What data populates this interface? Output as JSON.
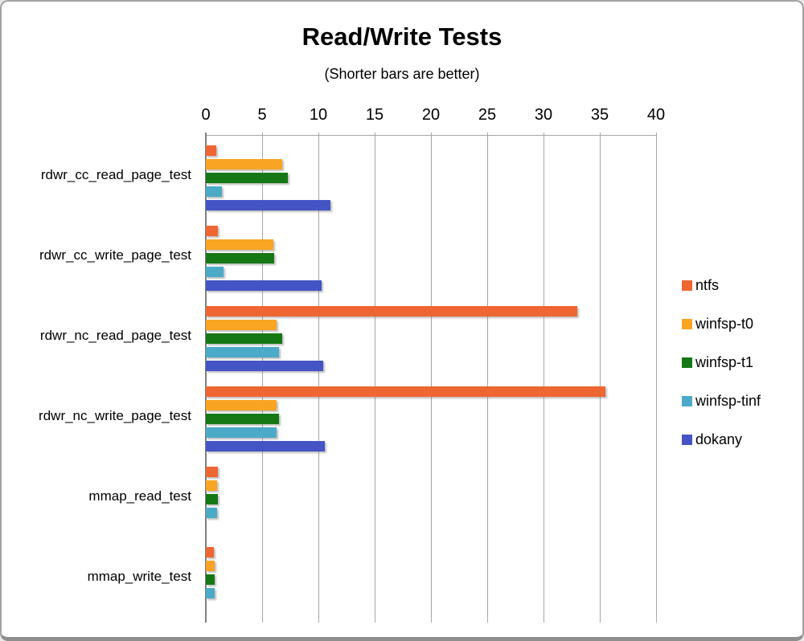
{
  "window": {
    "title": "Read/Write Tests",
    "subtitle": "(Shorter bars are better)"
  },
  "chart_data": {
    "type": "bar",
    "orientation": "horizontal",
    "title": "Read/Write Tests",
    "subtitle": "(Shorter bars are better)",
    "categories": [
      "rdwr_cc_read_page_test",
      "rdwr_cc_write_page_test",
      "rdwr_nc_read_page_test",
      "rdwr_nc_write_page_test",
      "mmap_read_test",
      "mmap_write_test"
    ],
    "series": [
      {
        "name": "ntfs",
        "color": "#EE6632",
        "values": [
          0.9,
          1.1,
          33.0,
          35.5,
          1.1,
          0.7
        ]
      },
      {
        "name": "winfsp-t0",
        "color": "#F9A423",
        "values": [
          6.8,
          6.0,
          6.3,
          6.3,
          1.0,
          0.8
        ]
      },
      {
        "name": "winfsp-t1",
        "color": "#157815",
        "values": [
          7.3,
          6.1,
          6.8,
          6.5,
          1.1,
          0.8
        ]
      },
      {
        "name": "winfsp-tinf",
        "color": "#4BAAC8",
        "values": [
          1.4,
          1.6,
          6.5,
          6.3,
          1.0,
          0.8
        ]
      },
      {
        "name": "dokany",
        "color": "#4454C4",
        "values": [
          11.1,
          10.3,
          10.4,
          10.6,
          0,
          0
        ]
      }
    ],
    "xlim": [
      0,
      40
    ],
    "x_ticks": [
      0,
      5,
      10,
      15,
      20,
      25,
      30,
      35,
      40
    ],
    "grid": true,
    "legend_position": "right",
    "axis_color": "#7f7f7f",
    "gridline_color": "#a6a6a6"
  }
}
